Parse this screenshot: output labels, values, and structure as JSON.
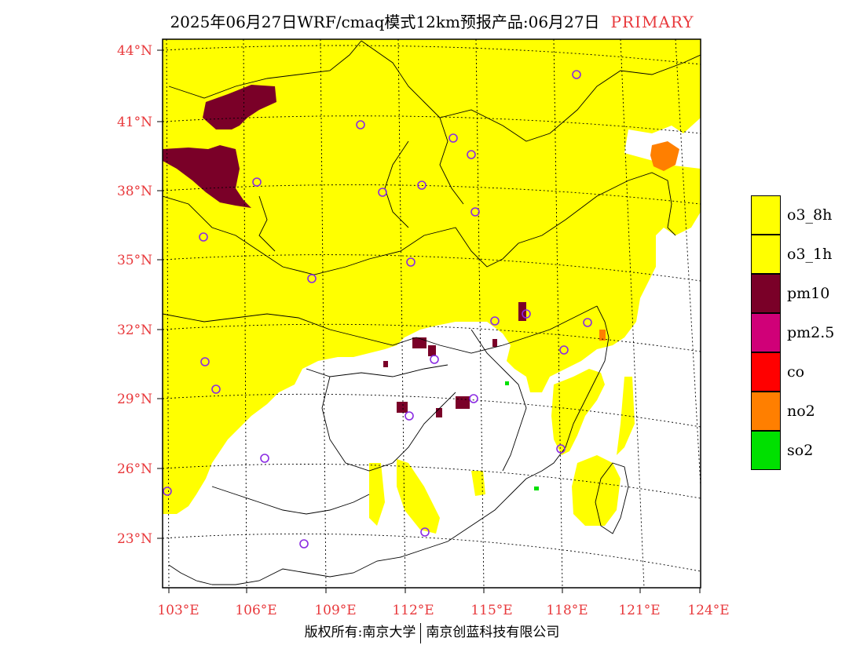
{
  "title": {
    "main": "2025年06月27日WRF/cmaq模式12km预报产品:06月27日",
    "tag": "PRIMARY",
    "tag_color": "#e8393c"
  },
  "axes": {
    "lat_labels": [
      "44°N",
      "41°N",
      "38°N",
      "35°N",
      "32°N",
      "29°N",
      "26°N",
      "23°N"
    ],
    "lon_labels": [
      "103°E",
      "106°E",
      "109°E",
      "112°E",
      "115°E",
      "118°E",
      "121°E",
      "124°E"
    ],
    "label_color": "#e8393c"
  },
  "legend": [
    {
      "label": "o3_8h",
      "color": "#ffff00"
    },
    {
      "label": "o3_1h",
      "color": "#ffff00"
    },
    {
      "label": "pm10",
      "color": "#7a0028"
    },
    {
      "label": "pm2.5",
      "color": "#d00078"
    },
    {
      "label": "co",
      "color": "#ff0000"
    },
    {
      "label": "no2",
      "color": "#ff7f00"
    },
    {
      "label": "so2",
      "color": "#00e000"
    }
  ],
  "map": {
    "primary_pollutant_fill": "#ffff00",
    "station_marker_color": "#8a2be2"
  },
  "footer": {
    "left": "版权所有:南京大学",
    "right": "南京创蓝科技有限公司"
  }
}
